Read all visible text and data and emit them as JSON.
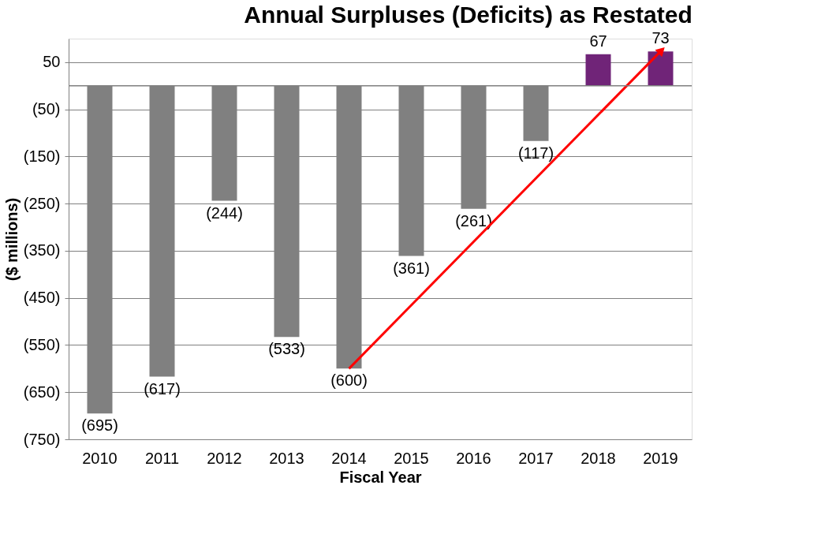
{
  "chart_data": {
    "type": "bar",
    "title": "Annual Surpluses (Deficits) as Restated",
    "xlabel": "Fiscal Year",
    "ylabel": "($ millions)",
    "categories": [
      "2010",
      "2011",
      "2012",
      "2013",
      "2014",
      "2015",
      "2016",
      "2017",
      "2018",
      "2019"
    ],
    "series": [
      {
        "values": [
          -695,
          -617,
          -244,
          -533,
          -600,
          -361,
          -261,
          -117,
          67,
          73
        ],
        "colors": [
          "#808080",
          "#808080",
          "#808080",
          "#808080",
          "#808080",
          "#808080",
          "#808080",
          "#808080",
          "#702478",
          "#702478"
        ],
        "value_labels": [
          "(695)",
          "(617)",
          "(244)",
          "(533)",
          "(600)",
          "(361)",
          "(261)",
          "(117)",
          "67",
          "73"
        ]
      },
      {
        "type": "line",
        "values": [
          null,
          null,
          null,
          null,
          -600,
          null,
          null,
          null,
          null,
          73
        ],
        "color": "#ff0000"
      }
    ],
    "ylim": [
      -750,
      100
    ],
    "yticks": [
      50,
      {
        "value": -50,
        "label": "(50)"
      },
      {
        "value": -150,
        "label": "(150)"
      },
      {
        "value": -250,
        "label": "(250)"
      },
      {
        "value": -350,
        "label": "(350)"
      },
      {
        "value": -450,
        "label": "(450)"
      },
      {
        "value": -550,
        "label": "(550)"
      },
      {
        "value": -650,
        "label": "(650)"
      },
      {
        "value": -750,
        "label": "(750)"
      }
    ],
    "ref_lines": [
      {
        "axis": "y",
        "value": 0,
        "color": "#808080"
      }
    ],
    "grid": "y"
  }
}
